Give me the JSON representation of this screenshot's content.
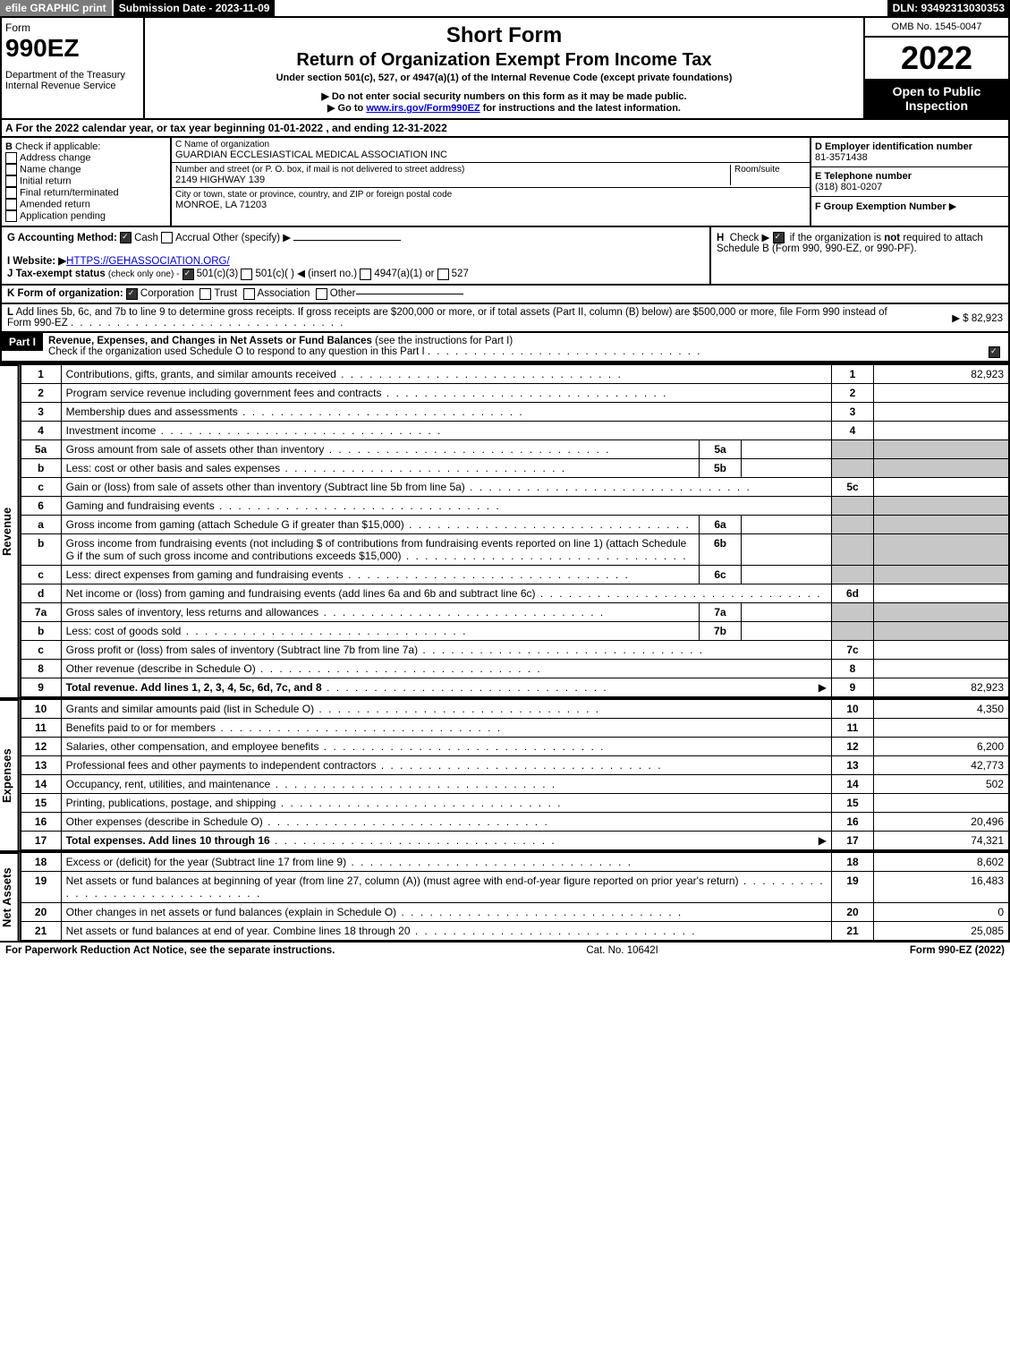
{
  "topbar": {
    "efile": "efile GRAPHIC print",
    "submission": "Submission Date - 2023-11-09",
    "dln": "DLN: 93492313030353"
  },
  "header": {
    "form_word": "Form",
    "form_number": "990EZ",
    "dept": "Department of the Treasury",
    "irs": "Internal Revenue Service",
    "short_form": "Short Form",
    "title": "Return of Organization Exempt From Income Tax",
    "under": "Under section 501(c), 527, or 4947(a)(1) of the Internal Revenue Code (except private foundations)",
    "ssn_note": "Do not enter social security numbers on this form as it may be made public.",
    "goto": "Go to ",
    "goto_link": "www.irs.gov/Form990EZ",
    "goto_rest": " for instructions and the latest information.",
    "omb": "OMB No. 1545-0047",
    "year": "2022",
    "open": "Open to Public Inspection"
  },
  "row_a": "A  For the 2022 calendar year, or tax year beginning 01-01-2022 , and ending 12-31-2022",
  "section_b": {
    "label": "B",
    "check_if": "Check if applicable:",
    "addr": "Address change",
    "name": "Name change",
    "initial": "Initial return",
    "final": "Final return/terminated",
    "amended": "Amended return",
    "pending": "Application pending"
  },
  "section_c": {
    "c_label": "C Name of organization",
    "org_name": "GUARDIAN ECCLESIASTICAL MEDICAL ASSOCIATION INC",
    "street_label": "Number and street (or P. O. box, if mail is not delivered to street address)",
    "room_label": "Room/suite",
    "street": "2149 HIGHWAY 139",
    "city_label": "City or town, state or province, country, and ZIP or foreign postal code",
    "city": "MONROE, LA  71203"
  },
  "section_d": {
    "d_label": "D Employer identification number",
    "ein": "81-3571438",
    "e_label": "E Telephone number",
    "phone": "(318) 801-0207",
    "f_label": "F Group Exemption Number",
    "f_arrow": "▶"
  },
  "section_g": {
    "label": "G Accounting Method:",
    "cash": "Cash",
    "accrual": "Accrual",
    "other": "Other (specify) ▶"
  },
  "section_h": {
    "label": "H",
    "text1": "Check ▶",
    "text2": "if the organization is ",
    "not": "not",
    "text3": " required to attach Schedule B (Form 990, 990-EZ, or 990-PF)."
  },
  "section_i": {
    "label": "I Website: ▶",
    "url": "HTTPS://GEHASSOCIATION.ORG/"
  },
  "section_j": {
    "label": "J Tax-exempt status",
    "note": "(check only one) -",
    "c3": "501(c)(3)",
    "c": "501(c)(  ) ◀ (insert no.)",
    "a1": "4947(a)(1) or",
    "s527": "527"
  },
  "section_k": {
    "label": "K Form of organization:",
    "corp": "Corporation",
    "trust": "Trust",
    "assoc": "Association",
    "other": "Other"
  },
  "section_l": {
    "label": "L",
    "text": "Add lines 5b, 6c, and 7b to line 9 to determine gross receipts. If gross receipts are $200,000 or more, or if total assets (Part II, column (B) below) are $500,000 or more, file Form 990 instead of Form 990-EZ",
    "amount": "▶ $ 82,923"
  },
  "part1": {
    "badge": "Part I",
    "title": "Revenue, Expenses, and Changes in Net Assets or Fund Balances",
    "hint": "(see the instructions for Part I)",
    "check": "Check if the organization used Schedule O to respond to any question in this Part I"
  },
  "sides": {
    "revenue": "Revenue",
    "expenses": "Expenses",
    "netassets": "Net Assets"
  },
  "revenue_lines": [
    {
      "n": "1",
      "desc": "Contributions, gifts, grants, and similar amounts received",
      "r": "1",
      "val": "82,923"
    },
    {
      "n": "2",
      "desc": "Program service revenue including government fees and contracts",
      "r": "2",
      "val": ""
    },
    {
      "n": "3",
      "desc": "Membership dues and assessments",
      "r": "3",
      "val": ""
    },
    {
      "n": "4",
      "desc": "Investment income",
      "r": "4",
      "val": ""
    },
    {
      "n": "5a",
      "desc": "Gross amount from sale of assets other than inventory",
      "mid": "5a",
      "grey": true
    },
    {
      "n": "b",
      "desc": "Less: cost or other basis and sales expenses",
      "mid": "5b",
      "grey": true
    },
    {
      "n": "c",
      "desc": "Gain or (loss) from sale of assets other than inventory (Subtract line 5b from line 5a)",
      "r": "5c",
      "val": ""
    },
    {
      "n": "6",
      "desc": "Gaming and fundraising events",
      "grey_full": true
    },
    {
      "n": "a",
      "desc": "Gross income from gaming (attach Schedule G if greater than $15,000)",
      "mid": "6a",
      "grey": true
    },
    {
      "n": "b",
      "desc": "Gross income from fundraising events (not including $                      of contributions from fundraising events reported on line 1) (attach Schedule G if the sum of such gross income and contributions exceeds $15,000)",
      "mid": "6b",
      "grey": true
    },
    {
      "n": "c",
      "desc": "Less: direct expenses from gaming and fundraising events",
      "mid": "6c",
      "grey": true
    },
    {
      "n": "d",
      "desc": "Net income or (loss) from gaming and fundraising events (add lines 6a and 6b and subtract line 6c)",
      "r": "6d",
      "val": ""
    },
    {
      "n": "7a",
      "desc": "Gross sales of inventory, less returns and allowances",
      "mid": "7a",
      "grey": true
    },
    {
      "n": "b",
      "desc": "Less: cost of goods sold",
      "mid": "7b",
      "grey": true
    },
    {
      "n": "c",
      "desc": "Gross profit or (loss) from sales of inventory (Subtract line 7b from line 7a)",
      "r": "7c",
      "val": ""
    },
    {
      "n": "8",
      "desc": "Other revenue (describe in Schedule O)",
      "r": "8",
      "val": ""
    },
    {
      "n": "9",
      "desc": "Total revenue. Add lines 1, 2, 3, 4, 5c, 6d, 7c, and 8",
      "r": "9",
      "val": "82,923",
      "bold": true,
      "arrow": true
    }
  ],
  "expense_lines": [
    {
      "n": "10",
      "desc": "Grants and similar amounts paid (list in Schedule O)",
      "r": "10",
      "val": "4,350"
    },
    {
      "n": "11",
      "desc": "Benefits paid to or for members",
      "r": "11",
      "val": ""
    },
    {
      "n": "12",
      "desc": "Salaries, other compensation, and employee benefits",
      "r": "12",
      "val": "6,200"
    },
    {
      "n": "13",
      "desc": "Professional fees and other payments to independent contractors",
      "r": "13",
      "val": "42,773"
    },
    {
      "n": "14",
      "desc": "Occupancy, rent, utilities, and maintenance",
      "r": "14",
      "val": "502"
    },
    {
      "n": "15",
      "desc": "Printing, publications, postage, and shipping",
      "r": "15",
      "val": ""
    },
    {
      "n": "16",
      "desc": "Other expenses (describe in Schedule O)",
      "r": "16",
      "val": "20,496"
    },
    {
      "n": "17",
      "desc": "Total expenses. Add lines 10 through 16",
      "r": "17",
      "val": "74,321",
      "bold": true,
      "arrow": true
    }
  ],
  "netasset_lines": [
    {
      "n": "18",
      "desc": "Excess or (deficit) for the year (Subtract line 17 from line 9)",
      "r": "18",
      "val": "8,602"
    },
    {
      "n": "19",
      "desc": "Net assets or fund balances at beginning of year (from line 27, column (A)) (must agree with end-of-year figure reported on prior year's return)",
      "r": "19",
      "val": "16,483"
    },
    {
      "n": "20",
      "desc": "Other changes in net assets or fund balances (explain in Schedule O)",
      "r": "20",
      "val": "0"
    },
    {
      "n": "21",
      "desc": "Net assets or fund balances at end of year. Combine lines 18 through 20",
      "r": "21",
      "val": "25,085"
    }
  ],
  "footer": {
    "paperwork": "For Paperwork Reduction Act Notice, see the separate instructions.",
    "cat": "Cat. No. 10642I",
    "form": "Form ",
    "formnum": "990-EZ",
    "formyear": " (2022)"
  }
}
